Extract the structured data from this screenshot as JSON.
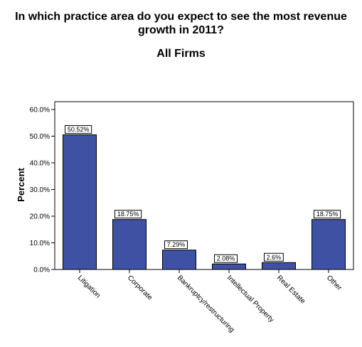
{
  "chart_data": {
    "type": "bar",
    "title_lines": [
      "In which practice area do you expect to see the most revenue",
      "growth in 2011?"
    ],
    "subtitle": "All Firms",
    "xlabel": "",
    "ylabel": "Percent",
    "ylim": [
      0,
      60
    ],
    "yticks": [
      0,
      10,
      20,
      30,
      40,
      50,
      60
    ],
    "ytick_labels": [
      "0.0%",
      "10.0%",
      "20.0%",
      "30.0%",
      "40.0%",
      "50.0%",
      "60.0%"
    ],
    "categories": [
      "Litigation",
      "Corporate",
      "Bankruptcy/restructuring",
      "Intellectual Property",
      "Real Estate",
      "Other"
    ],
    "values": [
      50.52,
      18.75,
      7.29,
      2.08,
      2.6,
      18.75
    ],
    "data_labels": [
      "50.52%",
      "18.75%",
      "7.29%",
      "2.08%",
      "2.6%",
      "18.75%"
    ],
    "grid": false,
    "legend": "none",
    "bar_color": "#3f51a3"
  }
}
